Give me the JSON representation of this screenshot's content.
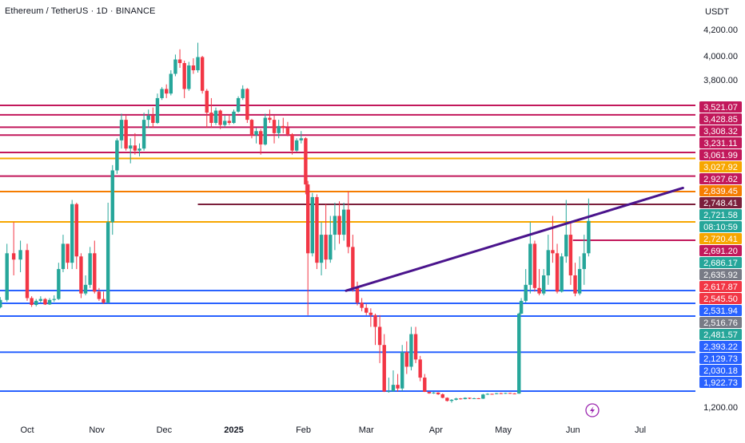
{
  "header": {
    "symbol_title": "Ethereum / TetherUS · 1D · BINANCE",
    "currency": "USDT"
  },
  "chart_data": {
    "type": "candlestick",
    "title": "Ethereum / TetherUS · 1D · BINANCE",
    "ylabel": "USDT",
    "xlabel": "",
    "ylim": [
      1100,
      4330
    ],
    "grid": false,
    "price_axis_ticks": [
      {
        "label": "4,200.00",
        "value": 4200
      },
      {
        "label": "4,000.00",
        "value": 4000
      },
      {
        "label": "3,800.00",
        "value": 3800
      },
      {
        "label": "1,200.00",
        "value": 1200
      }
    ],
    "time_axis_ticks": [
      {
        "label": "Oct",
        "value": "2024-10-01"
      },
      {
        "label": "Nov",
        "value": "2024-11-01"
      },
      {
        "label": "Dec",
        "value": "2024-12-01"
      },
      {
        "label": "2025",
        "value": "2025-01-01",
        "bold": true
      },
      {
        "label": "Feb",
        "value": "2025-02-01"
      },
      {
        "label": "Mar",
        "value": "2025-03-01"
      },
      {
        "label": "Apr",
        "value": "2025-04-01"
      },
      {
        "label": "May",
        "value": "2025-05-01"
      },
      {
        "label": "Jun",
        "value": "2025-06-01"
      },
      {
        "label": "Jul",
        "value": "2025-07-01"
      }
    ],
    "horizontal_levels": [
      {
        "value": 3521.07,
        "color": "#c2185b",
        "start": "2024-09-01"
      },
      {
        "value": 3428.85,
        "color": "#c2185b",
        "start": "2024-09-11"
      },
      {
        "value": 3308.32,
        "color": "#c2185b",
        "start": "2024-09-01"
      },
      {
        "value": 3231.11,
        "color": "#c2185b",
        "start": "2024-09-01"
      },
      {
        "value": 3061.99,
        "color": "#c2185b",
        "start": "2024-09-01"
      },
      {
        "value": 3027.92,
        "color": "#f7a600",
        "start": "2024-09-01"
      },
      {
        "value": 2927.62,
        "color": "#c2185b",
        "start": "2024-09-01"
      },
      {
        "value": 2839.45,
        "color": "#f57c00",
        "start": "2024-09-01"
      },
      {
        "value": 2748.41,
        "color": "#7b1f3b",
        "start": "2024-12-16"
      },
      {
        "value": 2720.41,
        "color": "#f7a600",
        "start": "2024-09-01"
      },
      {
        "value": 2691.2,
        "color": "#c2185b",
        "start": "2025-06-01"
      },
      {
        "value": 2531.94,
        "color": "#2962ff",
        "start": "2024-09-01"
      },
      {
        "value": 2393.22,
        "color": "#2962ff",
        "start": "2024-09-01"
      },
      {
        "value": 2129.73,
        "color": "#2962ff",
        "start": "2024-09-01"
      },
      {
        "value": 2030.18,
        "color": "#2962ff",
        "start": "2024-09-01"
      },
      {
        "value": 1922.73,
        "color": "#2962ff",
        "start": "2024-09-01"
      }
    ],
    "trend_line": {
      "color": "#4a148c",
      "from": {
        "date": "2025-02-20",
        "price": 2530
      },
      "to": {
        "date": "2025-07-20",
        "price": 2860
      }
    },
    "price_labels": [
      {
        "label": "3,521.07",
        "value": 3521.07,
        "color": "#c2185b"
      },
      {
        "label": "3,428.85",
        "value": 3428.85,
        "color": "#c2185b"
      },
      {
        "label": "3,308.32",
        "value": 3308.32,
        "color": "#c2185b"
      },
      {
        "label": "3,231.11",
        "value": 3231.11,
        "color": "#c2185b"
      },
      {
        "label": "3,061.99",
        "value": 3061.99,
        "color": "#c2185b"
      },
      {
        "label": "3,027.92",
        "value": 3027.92,
        "color": "#f7a600"
      },
      {
        "label": "2,927.62",
        "value": 2927.62,
        "color": "#c2185b"
      },
      {
        "label": "2,839.45",
        "value": 2839.45,
        "color": "#f57c00"
      },
      {
        "label": "2,748.41",
        "value": 2748.41,
        "color": "#7b1f3b"
      },
      {
        "label": "2,721.58",
        "value": 2721.58,
        "color": "#26a69a"
      },
      {
        "label": "08:10:59",
        "value": null,
        "color": "#26a69a"
      },
      {
        "label": "2,720.41",
        "value": 2720.41,
        "color": "#f7a600"
      },
      {
        "label": "2,691.20",
        "value": 2691.2,
        "color": "#c2185b"
      },
      {
        "label": "2,686.17",
        "value": 2686.17,
        "color": "#26a69a"
      },
      {
        "label": "2,635.92",
        "value": 2635.92,
        "color": "#787b86"
      },
      {
        "label": "2,617.87",
        "value": 2617.87,
        "color": "#f23645"
      },
      {
        "label": "2,545.50",
        "value": 2545.5,
        "color": "#f23645"
      },
      {
        "label": "2,531.94",
        "value": 2531.94,
        "color": "#2962ff"
      },
      {
        "label": "2,516.76",
        "value": 2516.76,
        "color": "#787b86"
      },
      {
        "label": "2,481.57",
        "value": 2481.57,
        "color": "#26a69a"
      },
      {
        "label": "2,393.22",
        "value": 2393.22,
        "color": "#2962ff"
      },
      {
        "label": "2,129.73",
        "value": 2129.73,
        "color": "#2962ff"
      },
      {
        "label": "2,030.18",
        "value": 2030.18,
        "color": "#2962ff"
      },
      {
        "label": "1,922.73",
        "value": 1922.73,
        "color": "#2962ff"
      }
    ],
    "colors": {
      "up": "#26a69a",
      "down": "#f23645"
    },
    "candles": [
      [
        "2024-09-13",
        2350,
        2440,
        2330,
        2420
      ],
      [
        "2024-09-16",
        2420,
        2470,
        2300,
        2310
      ],
      [
        "2024-09-19",
        2310,
        2460,
        2290,
        2430
      ],
      [
        "2024-09-22",
        2430,
        2680,
        2410,
        2650
      ],
      [
        "2024-09-25",
        2650,
        2720,
        2580,
        2630
      ],
      [
        "2024-09-28",
        2630,
        2690,
        2590,
        2660
      ],
      [
        "2024-10-01",
        2660,
        2680,
        2420,
        2450
      ],
      [
        "2024-10-03",
        2450,
        2470,
        2320,
        2360
      ],
      [
        "2024-10-05",
        2360,
        2440,
        2330,
        2420
      ],
      [
        "2024-10-07",
        2420,
        2470,
        2400,
        2440
      ],
      [
        "2024-10-09",
        2440,
        2450,
        2360,
        2370
      ],
      [
        "2024-10-11",
        2370,
        2450,
        2360,
        2430
      ],
      [
        "2024-10-13",
        2430,
        2480,
        2410,
        2440
      ],
      [
        "2024-10-15",
        2440,
        2620,
        2430,
        2600
      ],
      [
        "2024-10-17",
        2600,
        2700,
        2590,
        2680
      ],
      [
        "2024-10-19",
        2680,
        2680,
        2600,
        2620
      ],
      [
        "2024-10-21",
        2620,
        2780,
        2600,
        2750
      ],
      [
        "2024-10-23",
        2750,
        2760,
        2600,
        2640
      ],
      [
        "2024-10-25",
        2640,
        2650,
        2450,
        2500
      ],
      [
        "2024-10-27",
        2500,
        2580,
        2480,
        2550
      ],
      [
        "2024-10-29",
        2550,
        2670,
        2540,
        2650
      ],
      [
        "2024-10-31",
        2650,
        2690,
        2500,
        2520
      ],
      [
        "2024-11-02",
        2520,
        2540,
        2420,
        2440
      ],
      [
        "2024-11-04",
        2440,
        2520,
        2380,
        2400
      ],
      [
        "2024-11-06",
        2400,
        2760,
        2390,
        2720
      ],
      [
        "2024-11-08",
        2720,
        2990,
        2700,
        2960
      ],
      [
        "2024-11-10",
        2960,
        3200,
        2940,
        3180
      ],
      [
        "2024-11-12",
        3180,
        3440,
        3100,
        3380
      ],
      [
        "2024-11-14",
        3380,
        3420,
        3080,
        3100
      ],
      [
        "2024-11-16",
        3100,
        3200,
        3000,
        3130
      ],
      [
        "2024-11-18",
        3130,
        3250,
        3050,
        3080
      ],
      [
        "2024-11-20",
        3080,
        3150,
        3040,
        3100
      ],
      [
        "2024-11-22",
        3100,
        3450,
        3080,
        3380
      ],
      [
        "2024-11-24",
        3380,
        3480,
        3300,
        3420
      ],
      [
        "2024-11-26",
        3420,
        3500,
        3300,
        3350
      ],
      [
        "2024-11-28",
        3350,
        3650,
        3340,
        3600
      ],
      [
        "2024-11-30",
        3600,
        3720,
        3580,
        3700
      ],
      [
        "2024-12-02",
        3700,
        3750,
        3600,
        3650
      ],
      [
        "2024-12-04",
        3650,
        3880,
        3630,
        3850
      ],
      [
        "2024-12-06",
        3850,
        4010,
        3830,
        3970
      ],
      [
        "2024-12-08",
        3970,
        4050,
        3900,
        3940
      ],
      [
        "2024-12-10",
        3940,
        3960,
        3600,
        3700
      ],
      [
        "2024-12-12",
        3700,
        3950,
        3680,
        3920
      ],
      [
        "2024-12-14",
        3920,
        3980,
        3850,
        3880
      ],
      [
        "2024-12-16",
        3880,
        4100,
        3860,
        3990
      ],
      [
        "2024-12-18",
        3990,
        4000,
        3650,
        3680
      ],
      [
        "2024-12-20",
        3680,
        3700,
        3300,
        3450
      ],
      [
        "2024-12-22",
        3450,
        3600,
        3300,
        3350
      ],
      [
        "2024-12-24",
        3350,
        3500,
        3330,
        3470
      ],
      [
        "2024-12-26",
        3470,
        3480,
        3290,
        3330
      ],
      [
        "2024-12-28",
        3330,
        3420,
        3310,
        3370
      ],
      [
        "2024-12-30",
        3370,
        3430,
        3330,
        3350
      ],
      [
        "2025-01-01",
        3350,
        3480,
        3340,
        3460
      ],
      [
        "2025-01-03",
        3460,
        3620,
        3450,
        3600
      ],
      [
        "2025-01-05",
        3600,
        3740,
        3580,
        3700
      ],
      [
        "2025-01-07",
        3700,
        3710,
        3350,
        3380
      ],
      [
        "2025-01-09",
        3380,
        3390,
        3200,
        3230
      ],
      [
        "2025-01-11",
        3230,
        3300,
        3150,
        3270
      ],
      [
        "2025-01-13",
        3270,
        3290,
        3050,
        3140
      ],
      [
        "2025-01-15",
        3140,
        3440,
        3130,
        3400
      ],
      [
        "2025-01-17",
        3400,
        3480,
        3350,
        3380
      ],
      [
        "2025-01-19",
        3380,
        3420,
        3150,
        3250
      ],
      [
        "2025-01-21",
        3250,
        3380,
        3200,
        3320
      ],
      [
        "2025-01-23",
        3320,
        3400,
        3250,
        3300
      ],
      [
        "2025-01-25",
        3300,
        3360,
        3220,
        3240
      ],
      [
        "2025-01-27",
        3240,
        3250,
        3050,
        3080
      ],
      [
        "2025-01-29",
        3080,
        3200,
        3070,
        3180
      ],
      [
        "2025-01-31",
        3180,
        3270,
        3150,
        3200
      ],
      [
        "2025-02-02",
        3200,
        3210,
        2820,
        2880
      ],
      [
        "2025-02-03",
        2880,
        2900,
        2150,
        2650
      ],
      [
        "2025-02-05",
        2650,
        2830,
        2640,
        2800
      ],
      [
        "2025-02-07",
        2800,
        2820,
        2600,
        2620
      ],
      [
        "2025-02-09",
        2620,
        2720,
        2580,
        2700
      ],
      [
        "2025-02-11",
        2700,
        2750,
        2600,
        2630
      ],
      [
        "2025-02-13",
        2630,
        2730,
        2620,
        2700
      ],
      [
        "2025-02-15",
        2700,
        2760,
        2660,
        2730
      ],
      [
        "2025-02-17",
        2730,
        2770,
        2680,
        2700
      ],
      [
        "2025-02-19",
        2700,
        2760,
        2690,
        2740
      ],
      [
        "2025-02-21",
        2740,
        2840,
        2650,
        2670
      ],
      [
        "2025-02-23",
        2670,
        2700,
        2520,
        2540
      ],
      [
        "2025-02-25",
        2540,
        2560,
        2350,
        2400
      ],
      [
        "2025-02-27",
        2400,
        2450,
        2230,
        2300
      ],
      [
        "2025-03-01",
        2300,
        2380,
        2150,
        2200
      ],
      [
        "2025-03-03",
        2200,
        2290,
        2100,
        2150
      ],
      [
        "2025-03-05",
        2150,
        2180,
        2050,
        2100
      ],
      [
        "2025-03-07",
        2100,
        2150,
        2000,
        2050
      ],
      [
        "2025-03-09",
        2050,
        2080,
        1880,
        1900
      ],
      [
        "2025-03-11",
        1900,
        1960,
        1850,
        1920
      ],
      [
        "2025-03-13",
        1920,
        1980,
        1890,
        1940
      ],
      [
        "2025-03-15",
        1940,
        1970,
        1900,
        1930
      ],
      [
        "2025-03-17",
        1930,
        2050,
        1920,
        2030
      ],
      [
        "2025-03-19",
        2030,
        2060,
        1970,
        1990
      ],
      [
        "2025-03-21",
        1990,
        2100,
        1980,
        2080
      ],
      [
        "2025-03-23",
        2080,
        2100,
        2000,
        2010
      ],
      [
        "2025-03-25",
        2010,
        2020,
        1950,
        1960
      ],
      [
        "2025-03-27",
        1960,
        1970,
        1880,
        1890
      ],
      [
        "2025-03-29",
        1890,
        1900,
        1800,
        1820
      ],
      [
        "2025-03-31",
        1820,
        1880,
        1800,
        1860
      ],
      [
        "2025-04-02",
        1860,
        1870,
        1750,
        1780
      ],
      [
        "2025-04-04",
        1780,
        1820,
        1600,
        1620
      ],
      [
        "2025-04-06",
        1620,
        1640,
        1450,
        1480
      ],
      [
        "2025-04-08",
        1480,
        1560,
        1400,
        1530
      ],
      [
        "2025-04-10",
        1530,
        1620,
        1500,
        1590
      ],
      [
        "2025-04-12",
        1590,
        1610,
        1540,
        1560
      ],
      [
        "2025-04-14",
        1560,
        1640,
        1550,
        1620
      ],
      [
        "2025-04-16",
        1620,
        1630,
        1560,
        1580
      ],
      [
        "2025-04-18",
        1580,
        1620,
        1570,
        1600
      ],
      [
        "2025-04-20",
        1600,
        1610,
        1560,
        1580
      ],
      [
        "2025-04-22",
        1580,
        1800,
        1570,
        1770
      ],
      [
        "2025-04-24",
        1770,
        1830,
        1750,
        1800
      ],
      [
        "2025-04-26",
        1800,
        1810,
        1770,
        1790
      ],
      [
        "2025-04-28",
        1790,
        1840,
        1780,
        1830
      ],
      [
        "2025-04-30",
        1830,
        1850,
        1790,
        1810
      ],
      [
        "2025-05-02",
        1810,
        1850,
        1800,
        1840
      ],
      [
        "2025-05-04",
        1840,
        1850,
        1800,
        1820
      ],
      [
        "2025-05-06",
        1820,
        1830,
        1780,
        1810
      ],
      [
        "2025-05-08",
        1810,
        2200,
        1800,
        2180
      ],
      [
        "2025-05-09",
        2180,
        2450,
        2170,
        2420
      ],
      [
        "2025-05-11",
        2420,
        2600,
        2400,
        2550
      ],
      [
        "2025-05-13",
        2550,
        2720,
        2500,
        2680
      ],
      [
        "2025-05-15",
        2680,
        2690,
        2520,
        2540
      ],
      [
        "2025-05-17",
        2540,
        2600,
        2480,
        2500
      ],
      [
        "2025-05-19",
        2500,
        2600,
        2480,
        2580
      ],
      [
        "2025-05-21",
        2580,
        2700,
        2550,
        2660
      ],
      [
        "2025-05-23",
        2660,
        2730,
        2620,
        2650
      ],
      [
        "2025-05-25",
        2650,
        2680,
        2500,
        2520
      ],
      [
        "2025-05-27",
        2520,
        2650,
        2510,
        2640
      ],
      [
        "2025-05-29",
        2640,
        2780,
        2620,
        2700
      ],
      [
        "2025-05-31",
        2700,
        2720,
        2550,
        2580
      ],
      [
        "2025-06-02",
        2580,
        2620,
        2470,
        2500
      ],
      [
        "2025-06-04",
        2500,
        2640,
        2480,
        2600
      ],
      [
        "2025-06-06",
        2600,
        2700,
        2550,
        2650
      ],
      [
        "2025-06-08",
        2650,
        2790,
        2640,
        2722
      ]
    ],
    "annotation_icon": "lightning-icon"
  }
}
